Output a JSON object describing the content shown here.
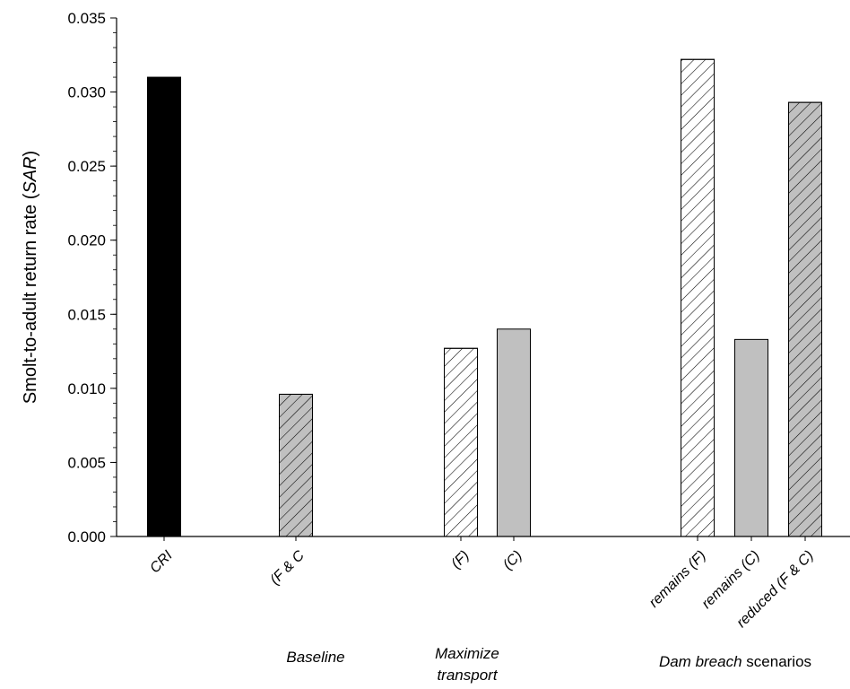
{
  "chart_data": {
    "type": "bar",
    "title": "",
    "xlabel": "",
    "ylabel": "Smolt-to-adult return rate (SAR)",
    "ylabel_parts": [
      {
        "text": "Smolt-to-adult return rate (",
        "italic": false
      },
      {
        "text": "SAR",
        "italic": true
      },
      {
        "text": ")",
        "italic": false
      }
    ],
    "ylim": [
      0,
      0.035
    ],
    "yticks": [
      "0.000",
      "0.005",
      "0.010",
      "0.015",
      "0.020",
      "0.025",
      "0.030",
      "0.035"
    ],
    "ytick_values": [
      0,
      0.005,
      0.01,
      0.015,
      0.02,
      0.025,
      0.03,
      0.035
    ],
    "grid": false,
    "bars": [
      {
        "label": "CRI",
        "value": 0.031,
        "fill": "#000000",
        "hatch": false
      },
      {
        "label": "(F & C",
        "value": 0.0096,
        "fill": "#c0c0c0",
        "hatch": true
      },
      {
        "label": "(F)",
        "value": 0.0127,
        "fill": "#ffffff",
        "hatch": true
      },
      {
        "label": "(C)",
        "value": 0.014,
        "fill": "#c0c0c0",
        "hatch": false
      },
      {
        "label": "remains (F)",
        "value": 0.0322,
        "fill": "#ffffff",
        "hatch": true
      },
      {
        "label": "remains (C)",
        "value": 0.0133,
        "fill": "#c0c0c0",
        "hatch": false
      },
      {
        "label": "reduced (F & C)",
        "value": 0.0293,
        "fill": "#c0c0c0",
        "hatch": true
      }
    ],
    "groups": [
      {
        "parts": [
          {
            "text": "Baseline",
            "italic": true
          }
        ]
      },
      {
        "parts": [
          {
            "text": "Maximize",
            "italic": true
          }
        ],
        "line2": [
          {
            "text": "transport",
            "italic": true
          }
        ]
      },
      {
        "parts": [
          {
            "text": "Dam breach",
            "italic": true
          },
          {
            "text": " scenarios",
            "italic": false
          }
        ]
      }
    ]
  }
}
